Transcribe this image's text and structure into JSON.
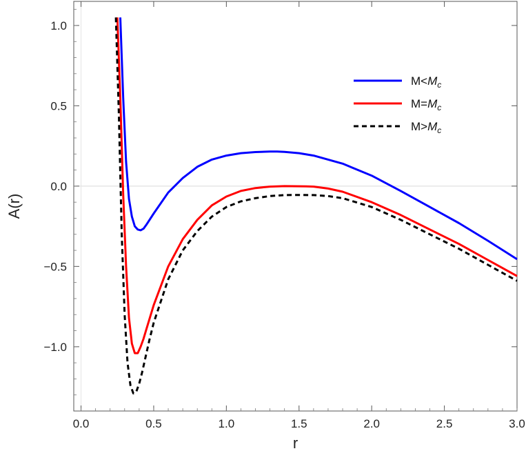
{
  "chart_data": {
    "type": "line",
    "title": "",
    "xlabel": "r",
    "ylabel": "A(r)",
    "xlim": [
      -0.05,
      3.0
    ],
    "ylim": [
      -1.4,
      1.15
    ],
    "xticks": [
      0.0,
      0.5,
      1.0,
      1.5,
      2.0,
      2.5,
      3.0
    ],
    "xtick_labels": [
      "0.0",
      "0.5",
      "1.0",
      "1.5",
      "2.0",
      "2.5",
      "3.0"
    ],
    "yticks": [
      -1.0,
      -0.5,
      0.0,
      0.5,
      1.0
    ],
    "ytick_labels": [
      "−1.0",
      "−0.5",
      "0.0",
      "0.5",
      "1.0"
    ],
    "grid": false,
    "legend_position": "top-right",
    "series": [
      {
        "name": "M<M_c",
        "legend_main": "M<",
        "legend_italic": "M",
        "legend_sub": "c",
        "color": "#0000ff",
        "dash": "solid",
        "x": [
          0.27,
          0.29,
          0.31,
          0.33,
          0.35,
          0.37,
          0.39,
          0.41,
          0.43,
          0.45,
          0.5,
          0.6,
          0.7,
          0.8,
          0.9,
          1.0,
          1.1,
          1.2,
          1.3,
          1.35,
          1.4,
          1.5,
          1.6,
          1.8,
          2.0,
          2.2,
          2.4,
          2.6,
          2.8,
          3.0
        ],
        "y": [
          1.05,
          0.55,
          0.15,
          -0.08,
          -0.19,
          -0.25,
          -0.27,
          -0.275,
          -0.265,
          -0.24,
          -0.17,
          -0.04,
          0.05,
          0.12,
          0.165,
          0.19,
          0.205,
          0.212,
          0.215,
          0.215,
          0.213,
          0.205,
          0.19,
          0.14,
          0.065,
          -0.03,
          -0.13,
          -0.23,
          -0.34,
          -0.455
        ]
      },
      {
        "name": "M=M_c",
        "legend_main": "M=",
        "legend_italic": "M",
        "legend_sub": "c",
        "color": "#ff0000",
        "dash": "solid",
        "x": [
          0.25,
          0.27,
          0.29,
          0.31,
          0.33,
          0.35,
          0.37,
          0.39,
          0.41,
          0.43,
          0.45,
          0.5,
          0.6,
          0.7,
          0.8,
          0.9,
          1.0,
          1.1,
          1.2,
          1.3,
          1.4,
          1.5,
          1.55,
          1.6,
          1.7,
          1.8,
          2.0,
          2.2,
          2.4,
          2.6,
          2.8,
          3.0
        ],
        "y": [
          1.05,
          0.55,
          -0.05,
          -0.5,
          -0.82,
          -0.98,
          -1.04,
          -1.04,
          -1.0,
          -0.95,
          -0.89,
          -0.74,
          -0.5,
          -0.33,
          -0.21,
          -0.12,
          -0.065,
          -0.03,
          -0.012,
          -0.003,
          0.0,
          -0.001,
          -0.002,
          -0.003,
          -0.015,
          -0.035,
          -0.1,
          -0.18,
          -0.27,
          -0.36,
          -0.46,
          -0.56
        ]
      },
      {
        "name": "M>M_c",
        "legend_main": "M>",
        "legend_italic": "M",
        "legend_sub": "c",
        "color": "#000000",
        "dash": "dashed",
        "x": [
          0.24,
          0.26,
          0.28,
          0.3,
          0.32,
          0.34,
          0.36,
          0.38,
          0.4,
          0.42,
          0.44,
          0.47,
          0.5,
          0.6,
          0.7,
          0.8,
          0.9,
          1.0,
          1.1,
          1.2,
          1.3,
          1.4,
          1.5,
          1.6,
          1.7,
          1.8,
          2.0,
          2.2,
          2.4,
          2.6,
          2.8,
          3.0
        ],
        "y": [
          1.05,
          0.45,
          -0.3,
          -0.8,
          -1.1,
          -1.24,
          -1.29,
          -1.28,
          -1.23,
          -1.16,
          -1.08,
          -0.96,
          -0.85,
          -0.58,
          -0.4,
          -0.28,
          -0.19,
          -0.13,
          -0.095,
          -0.075,
          -0.062,
          -0.056,
          -0.055,
          -0.056,
          -0.062,
          -0.075,
          -0.13,
          -0.21,
          -0.3,
          -0.39,
          -0.49,
          -0.59
        ]
      }
    ],
    "reference_line_y": 0.0
  }
}
